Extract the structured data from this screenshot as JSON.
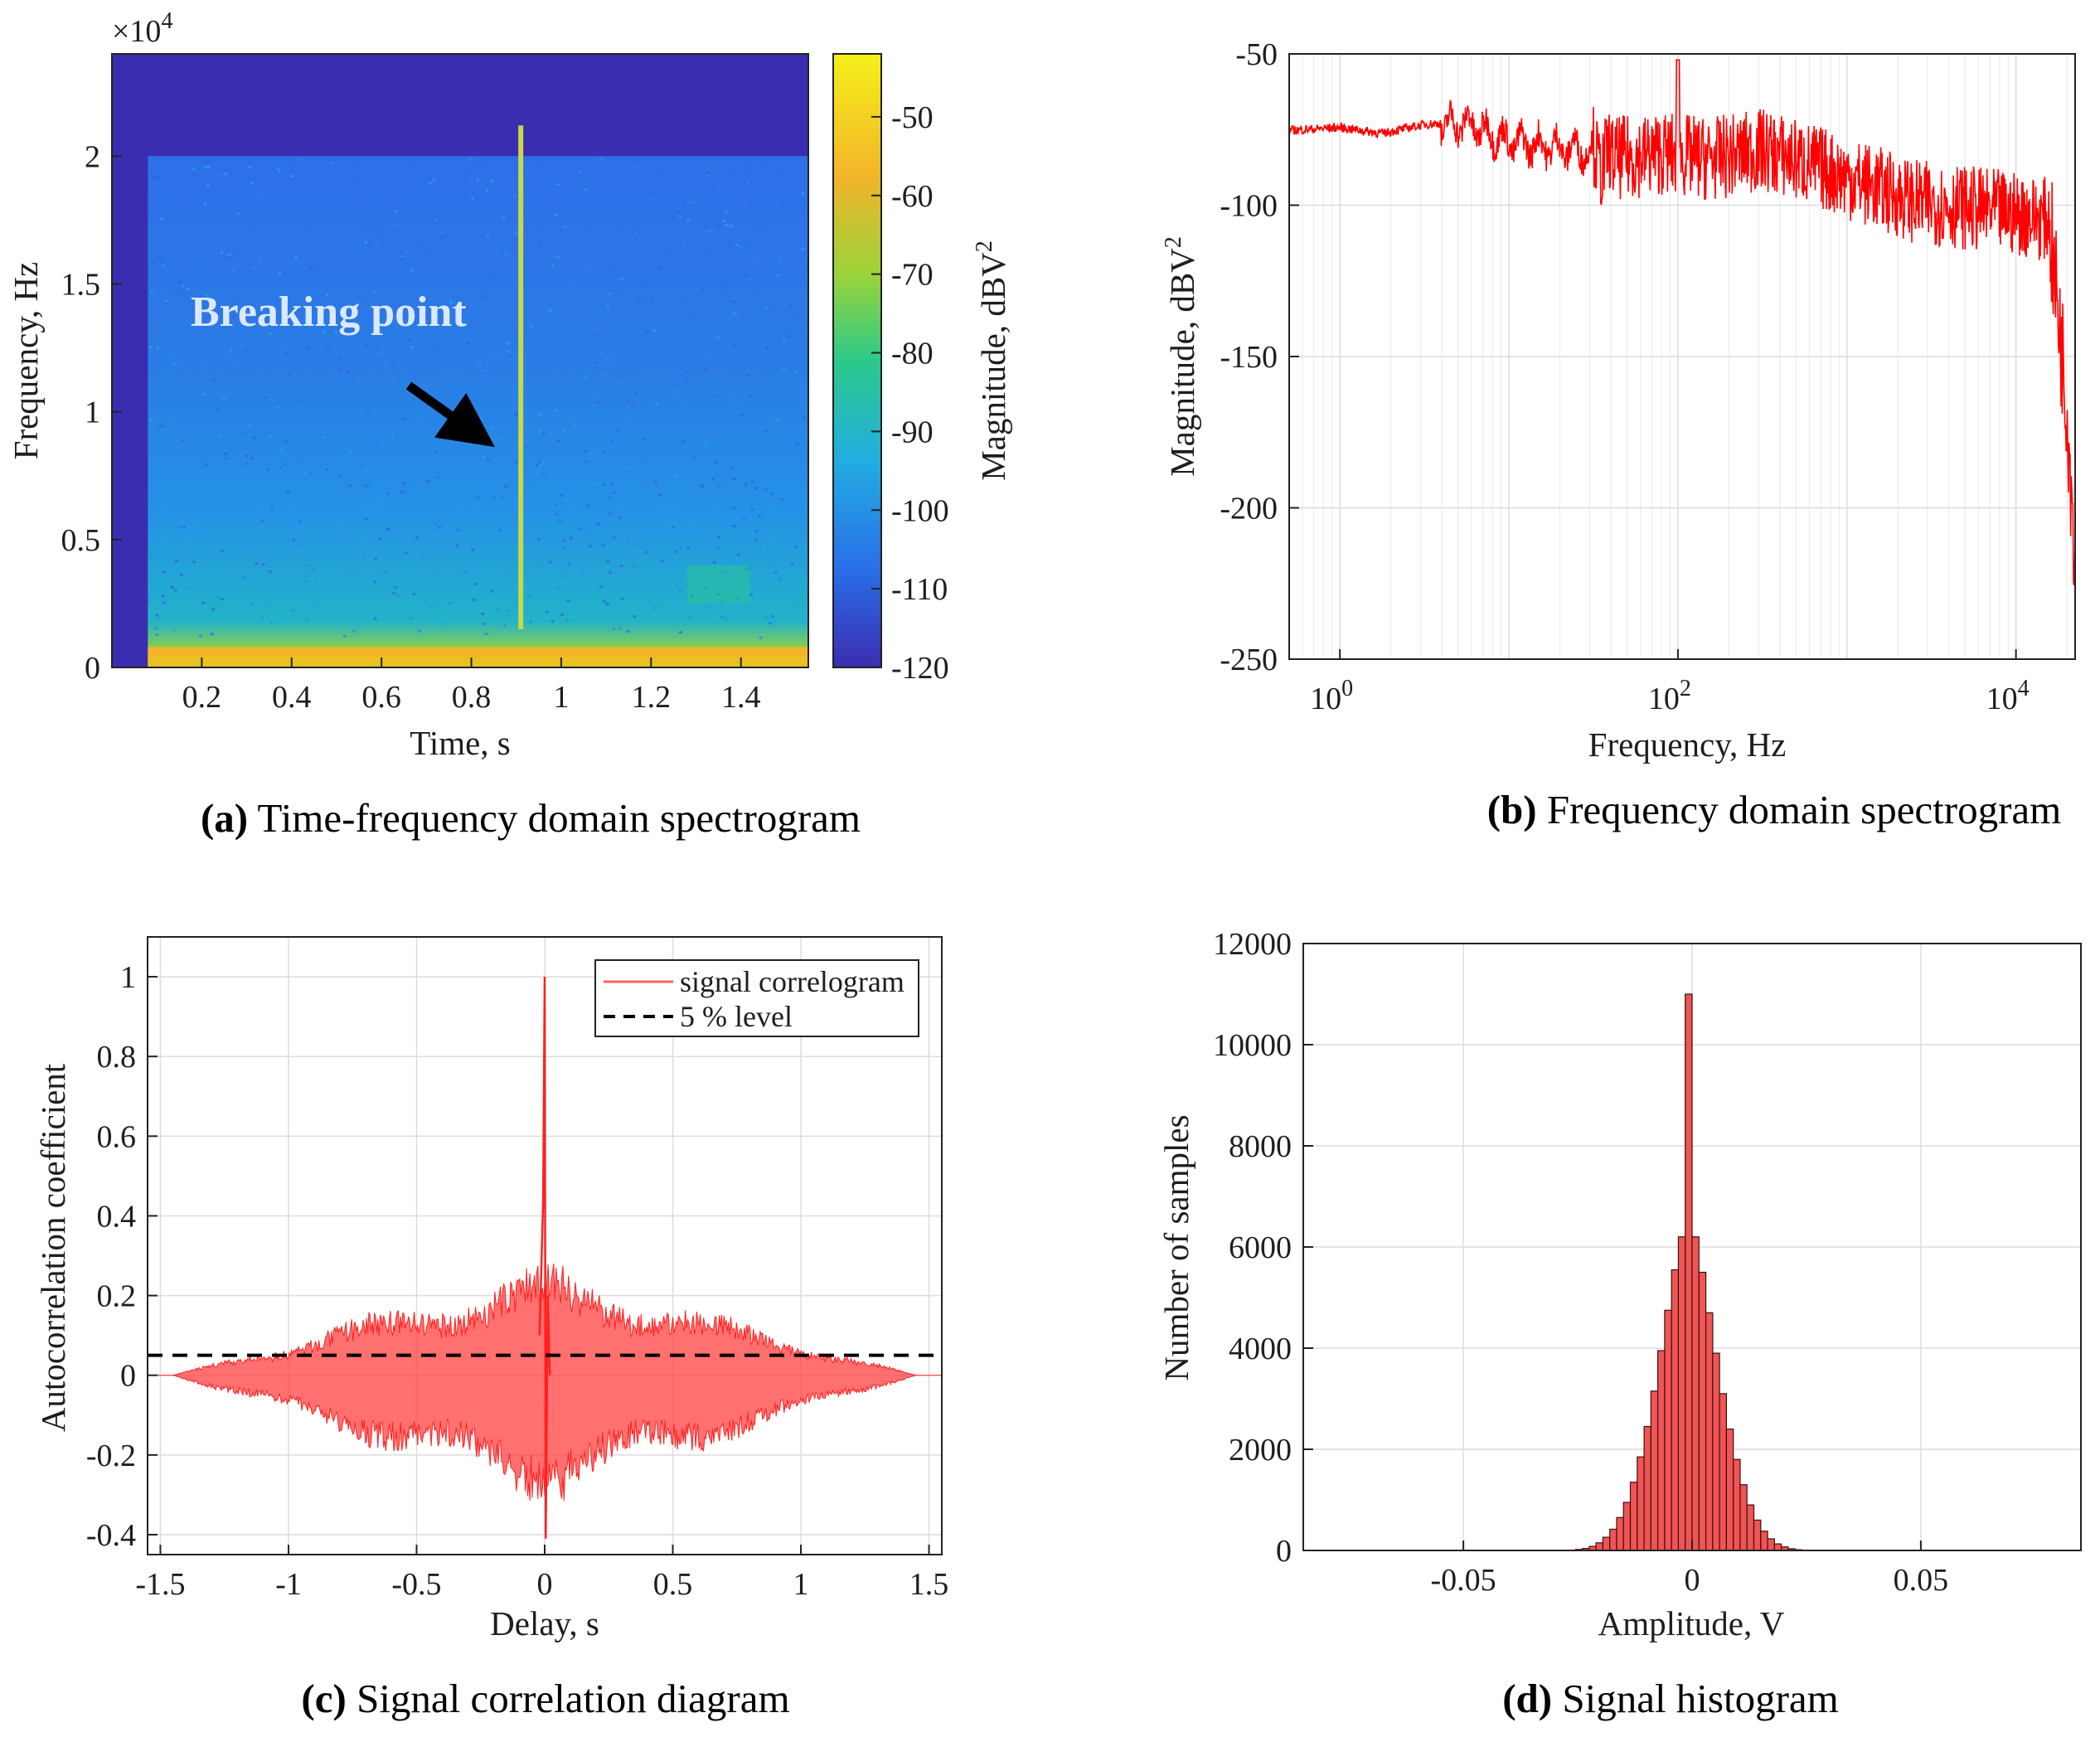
{
  "chart_data": [
    {
      "id": "a",
      "type": "heatmap",
      "title": "Time-frequency domain spectrogram",
      "caption_prefix": "(a)",
      "xlabel": "Time, s",
      "ylabel": "Frequency, Hz",
      "xlim": [
        0.0,
        1.55
      ],
      "ylim": [
        0,
        2.4
      ],
      "xticks": [
        "0.2",
        "0.4",
        "0.6",
        "0.8",
        "1",
        "1.2",
        "1.4"
      ],
      "xtick_values": [
        0.2,
        0.4,
        0.6,
        0.8,
        1.0,
        1.2,
        1.4
      ],
      "yticks": [
        "0",
        "0.5",
        "1",
        "1.5",
        "2"
      ],
      "ytick_values": [
        0,
        0.5,
        1,
        1.5,
        2
      ],
      "y_exponent": "×10",
      "y_exponent_power": "4",
      "colorbar_label": "Magnitude, dBV",
      "colorbar_label_power": "2",
      "colorbar_range": [
        -120,
        -42
      ],
      "colorbar_ticks": [
        "-50",
        "-60",
        "-70",
        "-80",
        "-90",
        "-100",
        "-110",
        "-120"
      ],
      "colorbar_values": [
        -50,
        -60,
        -70,
        -80,
        -90,
        -100,
        -110,
        -120
      ],
      "annotation": "Breaking point",
      "signal_start_s": 0.08,
      "signal_top_freq": 2.0,
      "break_time_s": 0.91,
      "colors": [
        "#3b2db0",
        "#2a6ee8",
        "#22aee0",
        "#2cc98a",
        "#9ad33a",
        "#f2b52a",
        "#f5f019"
      ]
    },
    {
      "id": "b",
      "type": "line",
      "title": "Frequency domain spectrogram",
      "caption_prefix": "(b)",
      "xlabel": "Frequency, Hz",
      "ylabel": "Magnitude, dBV",
      "ylabel_power": "2",
      "xscale": "log",
      "xlim_log10": [
        -0.3,
        4.35
      ],
      "ylim": [
        -250,
        -50
      ],
      "yticks": [
        "-50",
        "-100",
        "-150",
        "-200",
        "-250"
      ],
      "ytick_values": [
        -50,
        -100,
        -150,
        -200,
        -250
      ],
      "xticks": [
        {
          "base": "10",
          "power": "0",
          "log": 0
        },
        {
          "base": "10",
          "power": "2",
          "log": 2
        },
        {
          "base": "10",
          "power": "4",
          "log": 4
        }
      ],
      "envelope_points": [
        {
          "log_f": -0.3,
          "db": -75
        },
        {
          "log_f": 0.0,
          "db": -74
        },
        {
          "log_f": 0.25,
          "db": -76
        },
        {
          "log_f": 0.5,
          "db": -73
        },
        {
          "log_f": 0.75,
          "db": -72
        },
        {
          "log_f": 1.0,
          "db": -78
        },
        {
          "log_f": 1.3,
          "db": -80
        },
        {
          "log_f": 1.6,
          "db": -82
        },
        {
          "log_f": 1.9,
          "db": -80
        },
        {
          "log_f": 2.2,
          "db": -82
        },
        {
          "log_f": 2.5,
          "db": -79
        },
        {
          "log_f": 2.8,
          "db": -84
        },
        {
          "log_f": 3.1,
          "db": -90
        },
        {
          "log_f": 3.4,
          "db": -96
        },
        {
          "log_f": 3.7,
          "db": -98
        },
        {
          "log_f": 4.0,
          "db": -100
        },
        {
          "log_f": 4.2,
          "db": -102
        },
        {
          "log_f": 4.3,
          "db": -160
        },
        {
          "log_f": 4.35,
          "db": -210
        }
      ],
      "color": "#ff0000"
    },
    {
      "id": "c",
      "type": "line",
      "title": "Signal correlation diagram",
      "caption_prefix": "(c)",
      "xlabel": "Delay, s",
      "ylabel": "Autocorrelation coefficient",
      "xlim": [
        -1.55,
        1.55
      ],
      "ylim": [
        -0.45,
        1.1
      ],
      "xticks": [
        "-1.5",
        "-1",
        "-0.5",
        "0",
        "0.5",
        "1",
        "1.5"
      ],
      "xtick_values": [
        -1.5,
        -1,
        -0.5,
        0,
        0.5,
        1,
        1.5
      ],
      "yticks": [
        "-0.4",
        "-0.2",
        "0",
        "0.2",
        "0.4",
        "0.6",
        "0.8",
        "1"
      ],
      "ytick_values": [
        -0.4,
        -0.2,
        0,
        0.2,
        0.4,
        0.6,
        0.8,
        1.0
      ],
      "series": [
        {
          "name": "signal correlogram",
          "peak": 1.0,
          "secondary_peak": 0.44,
          "min": -0.41,
          "envelope_max": 0.3
        },
        {
          "name": "5 % level",
          "value": 0.05
        }
      ],
      "legend_position": "top-right",
      "color": "#ff0000"
    },
    {
      "id": "d",
      "type": "bar",
      "title": "Signal histogram",
      "caption_prefix": "(d)",
      "xlabel": "Amplitude, V",
      "ylabel": "Number of samples",
      "xlim": [
        -0.085,
        0.085
      ],
      "ylim": [
        0,
        12000
      ],
      "xticks": [
        "-0.05",
        "0",
        "0.05"
      ],
      "xtick_values": [
        -0.05,
        0,
        0.05
      ],
      "yticks": [
        "0",
        "2000",
        "4000",
        "6000",
        "8000",
        "10000",
        "12000"
      ],
      "ytick_values": [
        0,
        2000,
        4000,
        6000,
        8000,
        10000,
        12000
      ],
      "bin_width": 0.0015,
      "bin_centers": [
        -0.02475,
        -0.02325,
        -0.02175,
        -0.02025,
        -0.01875,
        -0.01725,
        -0.01575,
        -0.01425,
        -0.01275,
        -0.01125,
        -0.00975,
        -0.00825,
        -0.00675,
        -0.00525,
        -0.00375,
        -0.00225,
        -0.00075,
        0.00075,
        0.00225,
        0.00375,
        0.00525,
        0.00675,
        0.00825,
        0.00975,
        0.01125,
        0.01275,
        0.01425,
        0.01575,
        0.01725,
        0.01875,
        0.02025,
        0.02175,
        0.02325
      ],
      "values": [
        20,
        40,
        80,
        150,
        260,
        420,
        650,
        950,
        1350,
        1850,
        2450,
        3150,
        3950,
        4750,
        5550,
        6200,
        11000,
        6200,
        5500,
        4700,
        3900,
        3100,
        2400,
        1800,
        1300,
        900,
        600,
        380,
        230,
        130,
        70,
        35,
        15
      ],
      "color": "#f05454"
    }
  ]
}
